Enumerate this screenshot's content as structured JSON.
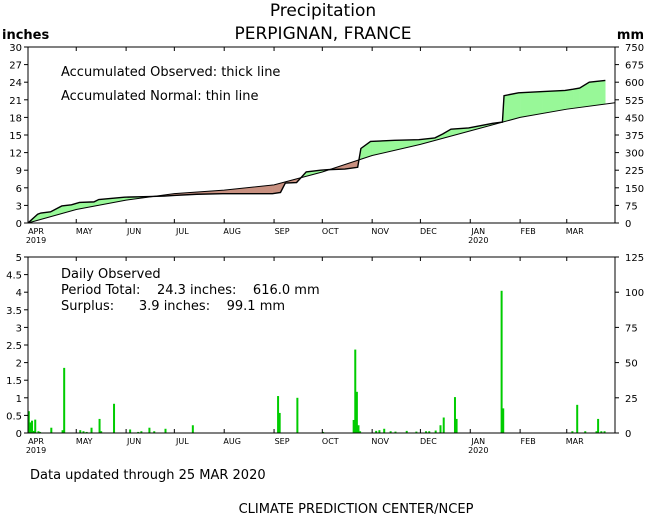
{
  "header": {
    "title": "Precipitation",
    "location": "PERPIGNAN, FRANCE",
    "left_unit": "inches",
    "right_unit": "mm"
  },
  "colors": {
    "surplus_fill": "#98f898",
    "deficit_fill": "#c89080",
    "daily_bar": "#00cc00",
    "line": "#000000"
  },
  "months": [
    {
      "label": "APR",
      "year": "2019"
    },
    {
      "label": "MAY",
      "year": ""
    },
    {
      "label": "JUN",
      "year": ""
    },
    {
      "label": "JUL",
      "year": ""
    },
    {
      "label": "AUG",
      "year": ""
    },
    {
      "label": "SEP",
      "year": ""
    },
    {
      "label": "OCT",
      "year": ""
    },
    {
      "label": "NOV",
      "year": ""
    },
    {
      "label": "DEC",
      "year": ""
    },
    {
      "label": "JAN",
      "year": "2020"
    },
    {
      "label": "FEB",
      "year": ""
    },
    {
      "label": "MAR",
      "year": ""
    }
  ],
  "chart_data": [
    {
      "type": "area",
      "panel": "accumulated",
      "annotations": [
        "Accumulated Observed: thick line",
        "Accumulated Normal: thin line"
      ],
      "xlabel": "",
      "ylabel": "inches",
      "y2label": "mm",
      "x_range": [
        "2019-04-01",
        "2020-03-31"
      ],
      "ylim": [
        0,
        30
      ],
      "y_ticks": [
        0,
        3,
        6,
        9,
        12,
        15,
        18,
        21,
        24,
        27,
        30
      ],
      "y2lim": [
        0,
        750
      ],
      "y2_ticks": [
        0,
        75,
        150,
        225,
        300,
        375,
        450,
        525,
        600,
        675,
        750
      ],
      "grid": false,
      "series": [
        {
          "x": [
            "2019-04-01",
            "2019-04-03",
            "2019-04-05",
            "2019-04-07",
            "2019-04-09",
            "2019-04-15",
            "2019-04-22",
            "2019-04-28",
            "2019-05-03",
            "2019-05-12",
            "2019-05-15",
            "2019-05-31",
            "2019-06-15",
            "2019-06-25",
            "2019-07-01",
            "2019-07-15",
            "2019-07-31",
            "2019-08-15",
            "2019-08-31",
            "2019-09-05",
            "2019-09-08",
            "2019-09-15",
            "2019-09-21",
            "2019-09-30",
            "2019-10-05",
            "2019-10-15",
            "2019-10-23",
            "2019-10-25",
            "2019-10-31",
            "2019-11-15",
            "2019-11-30",
            "2019-12-10",
            "2019-12-15",
            "2019-12-20",
            "2019-12-31",
            "2020-01-15",
            "2020-01-21",
            "2020-01-22",
            "2020-01-31",
            "2020-02-15",
            "2020-02-29",
            "2020-03-05",
            "2020-03-09",
            "2020-03-15",
            "2020-03-25"
          ],
          "values": [
            0.0,
            0.5,
            1.0,
            1.5,
            1.7,
            1.9,
            2.9,
            3.1,
            3.5,
            3.6,
            4.0,
            4.4,
            4.5,
            4.6,
            4.7,
            4.9,
            5.0,
            5.0,
            5.0,
            5.2,
            6.8,
            6.9,
            8.7,
            9.0,
            9.1,
            9.2,
            9.5,
            12.7,
            13.9,
            14.1,
            14.2,
            14.5,
            15.2,
            16.0,
            16.2,
            17.0,
            17.2,
            21.7,
            22.2,
            22.4,
            22.6,
            22.8,
            23.0,
            24.0,
            24.3
          ]
        },
        {
          "x": [
            "2019-04-01",
            "2019-05-01",
            "2019-06-01",
            "2019-07-01",
            "2019-08-01",
            "2019-09-01",
            "2019-10-01",
            "2019-11-01",
            "2019-12-01",
            "2020-01-01",
            "2020-02-01",
            "2020-03-01",
            "2020-03-31"
          ],
          "values": [
            0.0,
            2.3,
            3.9,
            5.0,
            5.6,
            6.5,
            8.7,
            11.5,
            13.4,
            15.7,
            18.0,
            19.4,
            20.5
          ]
        }
      ]
    },
    {
      "type": "bar",
      "panel": "daily",
      "annotations": [
        "Daily Observed",
        "Period Total:    24.3 inches:    616.0 mm",
        "Surplus:      3.9 inches:    99.1 mm"
      ],
      "xlabel": "",
      "ylabel": "",
      "y2label": "",
      "x_range": [
        "2019-04-01",
        "2020-03-31"
      ],
      "ylim": [
        0,
        5
      ],
      "y_ticks": [
        0,
        0.5,
        1,
        1.5,
        2,
        2.5,
        3,
        3.5,
        4,
        4.5,
        5
      ],
      "y2lim": [
        0,
        125
      ],
      "y2_ticks": [
        0,
        25,
        50,
        75,
        100,
        125
      ],
      "grid": false,
      "x": [
        "2019-04-01",
        "2019-04-02",
        "2019-04-03",
        "2019-04-04",
        "2019-04-05",
        "2019-04-07",
        "2019-04-08",
        "2019-04-15",
        "2019-04-22",
        "2019-04-23",
        "2019-05-03",
        "2019-05-05",
        "2019-05-07",
        "2019-05-10",
        "2019-05-15",
        "2019-05-16",
        "2019-05-24",
        "2019-06-03",
        "2019-06-08",
        "2019-06-10",
        "2019-06-15",
        "2019-06-18",
        "2019-06-25",
        "2019-07-12",
        "2019-09-03",
        "2019-09-04",
        "2019-09-15",
        "2019-10-01",
        "2019-10-20",
        "2019-10-21",
        "2019-10-22",
        "2019-10-23",
        "2019-10-24",
        "2019-11-03",
        "2019-11-05",
        "2019-11-08",
        "2019-11-12",
        "2019-11-15",
        "2019-11-22",
        "2019-11-28",
        "2019-12-04",
        "2019-12-06",
        "2019-12-10",
        "2019-12-13",
        "2019-12-15",
        "2019-12-22",
        "2019-12-23",
        "2020-01-20",
        "2020-01-21",
        "2020-03-04",
        "2020-03-07",
        "2020-03-12",
        "2020-03-19",
        "2020-03-20",
        "2020-03-22",
        "2020-03-24"
      ],
      "values": [
        0.62,
        0.3,
        0.35,
        0.06,
        0.38,
        0.05,
        0.03,
        0.15,
        0.08,
        1.85,
        0.08,
        0.05,
        0.03,
        0.15,
        0.4,
        0.05,
        0.83,
        0.1,
        0.03,
        0.05,
        0.15,
        0.05,
        0.12,
        0.22,
        1.05,
        0.57,
        1.0,
        0.03,
        0.37,
        2.37,
        1.17,
        0.22,
        0.05,
        0.06,
        0.08,
        0.12,
        0.05,
        0.04,
        0.06,
        0.04,
        0.05,
        0.05,
        0.07,
        0.22,
        0.44,
        1.02,
        0.4,
        4.04,
        0.7,
        0.05,
        0.8,
        0.05,
        0.05,
        0.4,
        0.05,
        0.05
      ]
    }
  ],
  "footer": {
    "updated": "Data updated through 25 MAR 2020",
    "credit": "CLIMATE PREDICTION CENTER/NCEP"
  }
}
